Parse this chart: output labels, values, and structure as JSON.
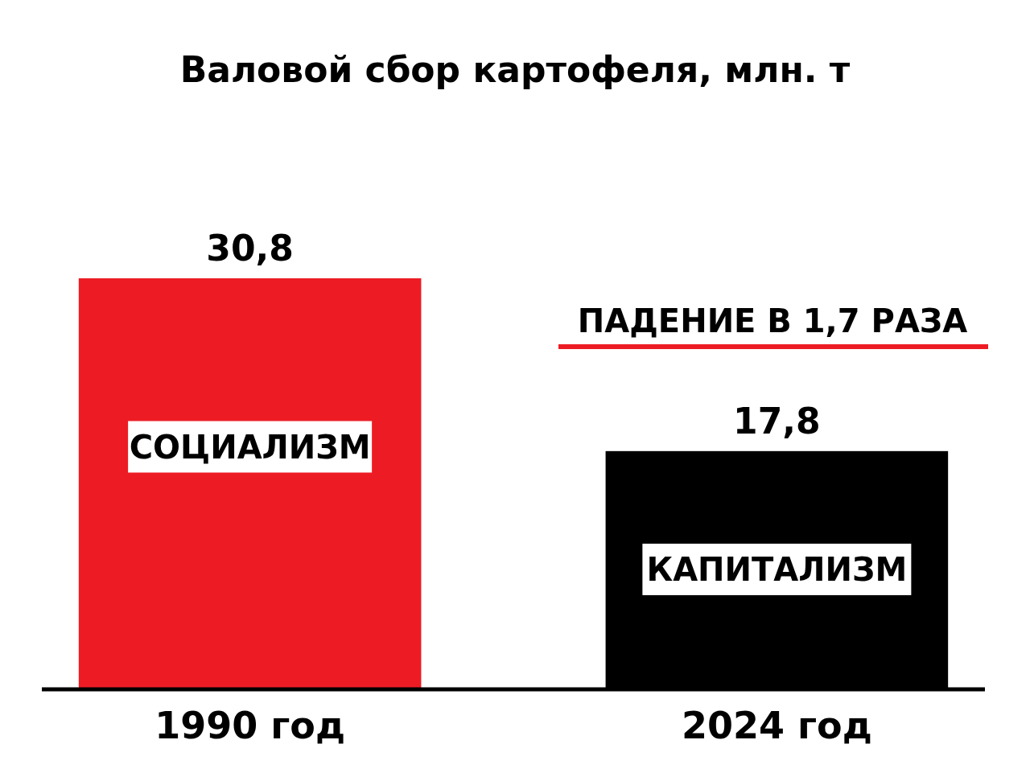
{
  "chart_data": {
    "type": "bar",
    "title": "Валовой сбор картофеля, млн. т",
    "categories": [
      "1990 год",
      "2024 год"
    ],
    "values": [
      30.8,
      17.8
    ],
    "value_labels": [
      "30,8",
      "17,8"
    ],
    "colors": [
      "#ed1c24",
      "#000000"
    ],
    "annotations": [
      "СОЦИАЛИЗМ",
      "КАПИТАЛИЗМ",
      "ПАДЕНИЕ В 1,7 РАЗА"
    ]
  }
}
